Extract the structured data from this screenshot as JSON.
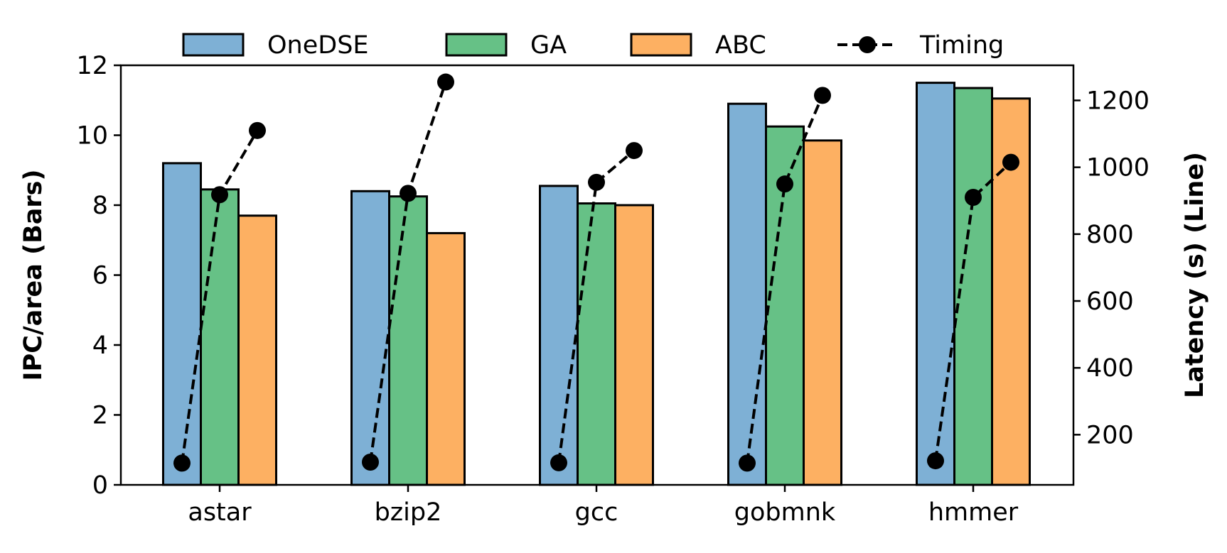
{
  "chart_data": {
    "type": "bar",
    "categories": [
      "astar",
      "bzip2",
      "gcc",
      "gobmnk",
      "hmmer"
    ],
    "series": [
      {
        "name": "OneDSE",
        "color": "#7eb0d5",
        "values": [
          9.2,
          8.4,
          8.55,
          10.9,
          11.5
        ]
      },
      {
        "name": "GA",
        "color": "#66c186",
        "values": [
          8.45,
          8.25,
          8.05,
          10.25,
          11.35
        ]
      },
      {
        "name": "ABC",
        "color": "#fdb062",
        "values": [
          7.7,
          7.2,
          8.0,
          9.85,
          11.05
        ]
      }
    ],
    "line_series": {
      "name": "Timing",
      "color": "#000000",
      "style": "dashed-with-dots",
      "axis": "right",
      "points": [
        [
          115,
          918,
          1110
        ],
        [
          118,
          922,
          1255
        ],
        [
          116,
          955,
          1050
        ],
        [
          115,
          950,
          1215
        ],
        [
          122,
          910,
          1015
        ]
      ]
    },
    "ylabel": "IPC/area (Bars)",
    "y2label": "Latency (s) (Line)",
    "ylim": [
      0,
      12
    ],
    "y2lim": [
      50,
      1305
    ],
    "yticks": [
      "0",
      "2",
      "4",
      "6",
      "8",
      "10",
      "12"
    ],
    "y2ticks": [
      "200",
      "400",
      "600",
      "800",
      "1000",
      "1200"
    ],
    "legend": {
      "position": "top-center",
      "items": [
        "OneDSE",
        "GA",
        "ABC",
        "Timing"
      ]
    }
  }
}
